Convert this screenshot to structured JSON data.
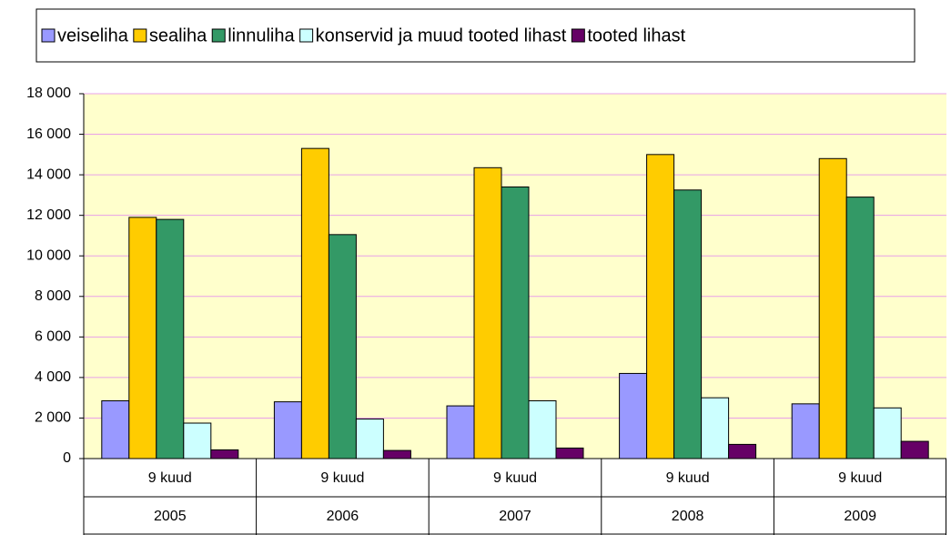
{
  "chart_data": {
    "type": "bar",
    "categories": [
      [
        "9 kuud",
        "2005"
      ],
      [
        "9 kuud",
        "2006"
      ],
      [
        "9 kuud",
        "2007"
      ],
      [
        "9 kuud",
        "2008"
      ],
      [
        "9 kuud",
        "2009"
      ]
    ],
    "series": [
      {
        "name": "veiseliha",
        "color": "#9999ff",
        "values": [
          2850,
          2800,
          2600,
          4200,
          2700
        ]
      },
      {
        "name": "sealiha",
        "color": "#ffcc00",
        "values": [
          11900,
          15300,
          14350,
          15000,
          14800
        ]
      },
      {
        "name": "linnuliha",
        "color": "#339966",
        "values": [
          11800,
          11050,
          13400,
          13250,
          12900
        ]
      },
      {
        "name": "konservid ja muud tooted lihast",
        "color": "#ccffff",
        "values": [
          1750,
          1950,
          2850,
          3000,
          2500
        ]
      },
      {
        "name": "tooted lihast",
        "color": "#660066",
        "values": [
          430,
          400,
          520,
          700,
          850
        ]
      }
    ],
    "ylim": [
      0,
      18000
    ],
    "yticks": [
      0,
      {
        "value": 2000,
        "label": "2 000"
      },
      {
        "value": 4000,
        "label": "4 000"
      },
      {
        "value": 6000,
        "label": "6 000"
      },
      {
        "value": 8000,
        "label": "8 000"
      },
      {
        "value": 10000,
        "label": "10 000"
      },
      {
        "value": 12000,
        "label": "12 000"
      },
      {
        "value": 14000,
        "label": "14 000"
      },
      {
        "value": 16000,
        "label": "16 000"
      },
      {
        "value": 18000,
        "label": "18 000"
      }
    ],
    "grid": true,
    "legend": "top",
    "plot_background": "#ffffcc"
  }
}
